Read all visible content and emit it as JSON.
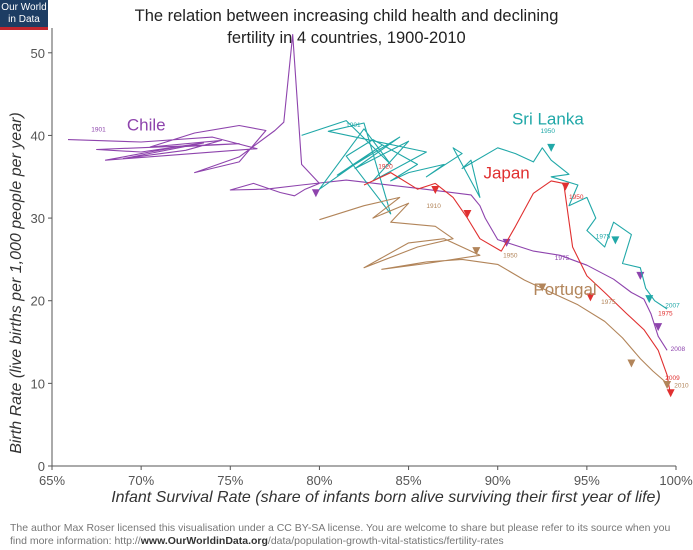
{
  "logo": {
    "line1": "Our World",
    "line2": "in Data"
  },
  "title": {
    "line1": "The relation between increasing child health and declining",
    "line2": "fertility in 4 countries, 1900-2010"
  },
  "footer": {
    "line1": "The author Max Roser licensed this visualisation under a CC BY-SA license. You are welcome to share but please refer to its source when you",
    "line2_prefix": "find more information: http://",
    "line2_link": "www.OurWorldinData.org",
    "line2_suffix": "/data/population-growth-vital-statistics/fertility-rates"
  },
  "chart_data": {
    "type": "line",
    "title": "The relation between increasing child health and declining fertility in 4 countries, 1900-2010",
    "xlabel": "Infant Survival Rate (share of infants born alive surviving their first year of life)",
    "ylabel": "Birth Rate (live births per 1,000 people per year)",
    "xlim": [
      65,
      100
    ],
    "ylim": [
      0,
      53
    ],
    "x_ticks": [
      65,
      70,
      75,
      80,
      85,
      90,
      95,
      100
    ],
    "x_tick_labels": [
      "65%",
      "70%",
      "75%",
      "80%",
      "85%",
      "90%",
      "95%",
      "100%"
    ],
    "y_ticks": [
      0,
      10,
      20,
      30,
      40,
      50
    ],
    "y_tick_labels": [
      "0",
      "10",
      "20",
      "30",
      "40",
      "50"
    ],
    "grid": false,
    "series": [
      {
        "name": "Chile",
        "color": "#8e44ad",
        "label_at": [
          69.2,
          40.6
        ],
        "x": [
          65.9,
          70.0,
          74.0,
          76.5,
          68.0,
          72.0,
          75.5,
          67.5,
          70.0,
          73.5,
          69.0,
          72.5,
          74.5,
          70.5,
          73.0,
          75.5,
          77.0,
          75.5,
          73.0,
          75.5,
          77.5,
          78.0,
          78.5,
          79.0,
          80.0,
          79.2,
          78.6,
          77.8,
          76.3,
          75.0,
          77.0,
          79.0,
          81.5,
          83.5,
          85.5,
          87.0,
          88.5,
          89.0,
          89.3,
          90.0,
          92.0,
          93.5,
          95.0,
          96.5,
          97.5,
          98.2,
          98.6,
          99.0,
          99.5
        ],
        "y": [
          39.5,
          39.2,
          39.8,
          38.4,
          37.0,
          38.6,
          39.0,
          38.3,
          38.0,
          39.1,
          37.2,
          38.2,
          39.4,
          38.6,
          40.3,
          41.2,
          40.6,
          36.8,
          35.5,
          37.4,
          40.6,
          41.6,
          52.2,
          36.5,
          34.2,
          33.5,
          32.7,
          33.1,
          34.2,
          33.4,
          33.5,
          34.0,
          34.6,
          34.1,
          33.6,
          33.2,
          32.8,
          31.5,
          30.0,
          27.4,
          26.0,
          25.5,
          24.3,
          22.6,
          21.0,
          20.2,
          18.4,
          15.7,
          14.0
        ],
        "markers": [
          [
            79.8,
            33.0
          ],
          [
            90.5,
            27.0
          ],
          [
            98.0,
            23.0
          ],
          [
            99.0,
            16.8
          ]
        ],
        "years": [
          {
            "x": 67.2,
            "y": 40.5,
            "text": "1901"
          },
          {
            "x": 93.2,
            "y": 24.9,
            "text": "1975"
          },
          {
            "x": 99.7,
            "y": 13.9,
            "text": "2008"
          }
        ]
      },
      {
        "name": "Sri Lanka",
        "color": "#21a8a8",
        "label_at": [
          90.8,
          41.3
        ],
        "x": [
          79.0,
          81.5,
          84.0,
          82.5,
          80.0,
          83.5,
          81.0,
          84.5,
          82.0,
          85.0,
          83.0,
          86.0,
          80.5,
          82.5,
          84.0,
          81.5,
          83.0,
          85.5,
          84.0,
          85.0,
          87.0,
          86.0,
          88.0,
          87.5,
          89.0,
          88.5,
          88.0,
          90.0,
          91.0,
          92.0,
          92.5,
          93.0,
          94.0,
          93.0,
          94.5,
          94.0,
          95.0,
          95.5,
          95.0,
          96.0,
          96.5,
          97.5,
          97.0,
          98.0,
          98.3,
          98.8,
          99.5
        ],
        "y": [
          40.0,
          41.8,
          36.5,
          40.8,
          33.5,
          38.8,
          35.2,
          39.8,
          36.0,
          39.3,
          34.5,
          38.0,
          40.5,
          41.5,
          30.5,
          37.5,
          39.5,
          36.5,
          34.5,
          35.5,
          36.5,
          35.0,
          37.8,
          38.5,
          32.5,
          37.0,
          36.0,
          38.5,
          37.8,
          36.8,
          38.5,
          37.0,
          35.3,
          35.0,
          34.0,
          31.5,
          32.5,
          30.0,
          28.5,
          26.5,
          29.5,
          28.0,
          24.5,
          24.0,
          21.5,
          20.0,
          19.0
        ],
        "markers": [
          [
            93.0,
            38.5
          ],
          [
            96.6,
            27.3
          ],
          [
            98.5,
            20.2
          ]
        ],
        "years": [
          {
            "x": 81.5,
            "y": 41.0,
            "text": "1901"
          },
          {
            "x": 92.4,
            "y": 40.3,
            "text": "1950"
          },
          {
            "x": 95.5,
            "y": 27.5,
            "text": "1975"
          },
          {
            "x": 99.4,
            "y": 19.2,
            "text": "2007"
          }
        ]
      },
      {
        "name": "Japan",
        "color": "#e03030",
        "label_at": [
          89.2,
          34.8
        ],
        "x": [
          82.5,
          84.0,
          85.5,
          86.5,
          87.5,
          88.3,
          89.0,
          90.2,
          91.0,
          92.0,
          93.0,
          93.7,
          94.2,
          95.0,
          96.0,
          97.2,
          98.2,
          99.0,
          99.5,
          99.7
        ],
        "y": [
          34.0,
          35.5,
          33.5,
          34.2,
          32.5,
          30.0,
          27.5,
          26.0,
          29.0,
          33.0,
          34.5,
          34.2,
          26.5,
          23.0,
          21.0,
          18.5,
          16.5,
          14.0,
          11.0,
          8.5
        ],
        "markers": [
          [
            86.5,
            33.4
          ],
          [
            88.3,
            30.5
          ],
          [
            93.8,
            33.8
          ],
          [
            95.2,
            20.4
          ],
          [
            99.7,
            8.8
          ]
        ],
        "years": [
          {
            "x": 83.3,
            "y": 36.0,
            "text": "1920"
          },
          {
            "x": 94.0,
            "y": 32.3,
            "text": "1950"
          },
          {
            "x": 99.0,
            "y": 18.2,
            "text": "1975"
          },
          {
            "x": 99.4,
            "y": 10.4,
            "text": "2009"
          }
        ]
      },
      {
        "name": "Portugal",
        "color": "#b2855a",
        "label_at": [
          92.0,
          20.7
        ],
        "x": [
          80.0,
          82.5,
          84.5,
          83.0,
          85.0,
          84.0,
          86.5,
          87.5,
          85.5,
          82.5,
          85.0,
          87.0,
          89.0,
          86.0,
          83.5,
          86.0,
          88.0,
          90.0,
          91.5,
          93.0,
          94.5,
          96.0,
          97.0,
          98.0,
          98.7,
          99.5
        ],
        "y": [
          29.8,
          31.5,
          32.5,
          30.0,
          31.8,
          29.5,
          29.0,
          27.5,
          26.5,
          24.0,
          27.0,
          27.5,
          25.5,
          24.5,
          23.8,
          24.7,
          25.0,
          24.4,
          22.5,
          21.0,
          19.5,
          17.5,
          15.5,
          13.0,
          11.5,
          10.0
        ],
        "markers": [
          [
            88.8,
            26.0
          ],
          [
            92.5,
            21.6
          ],
          [
            97.5,
            12.4
          ],
          [
            99.5,
            9.8
          ]
        ],
        "years": [
          {
            "x": 86.0,
            "y": 31.2,
            "text": "1910"
          },
          {
            "x": 90.3,
            "y": 25.2,
            "text": "1950"
          },
          {
            "x": 95.8,
            "y": 19.6,
            "text": "1975"
          },
          {
            "x": 99.9,
            "y": 9.5,
            "text": "2010"
          }
        ]
      }
    ]
  }
}
